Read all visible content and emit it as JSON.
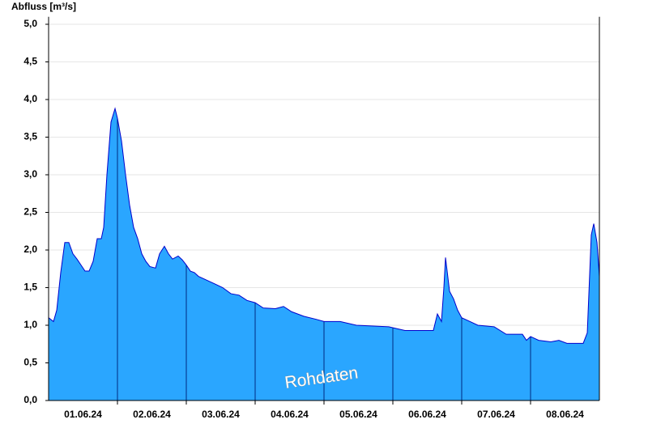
{
  "chart_data": {
    "type": "area",
    "y_label": "Abfluss [m³/s]",
    "watermark": "Rohdaten",
    "color": "#2aa6ff",
    "line_color": "#0000cc",
    "grid": true,
    "x": [
      0,
      0.071,
      0.118,
      0.176,
      0.235,
      0.294,
      0.353,
      0.412,
      0.471,
      0.529,
      0.588,
      0.647,
      0.706,
      0.765,
      0.8,
      0.847,
      0.906,
      0.965,
      1,
      1.059,
      1.118,
      1.176,
      1.235,
      1.294,
      1.353,
      1.412,
      1.471,
      1.553,
      1.612,
      1.682,
      1.741,
      1.8,
      1.882,
      1.941,
      2,
      2.059,
      2.118,
      2.176,
      2.294,
      2.412,
      2.529,
      2.647,
      2.765,
      2.882,
      3,
      3.118,
      3.294,
      3.412,
      3.529,
      3.706,
      3.882,
      4,
      4.235,
      4.471,
      4.941,
      5.176,
      5.588,
      5.647,
      5.706,
      5.741,
      5.765,
      5.824,
      5.882,
      5.941,
      6,
      6.118,
      6.235,
      6.471,
      6.647,
      6.882,
      6.941,
      7,
      7.118,
      7.294,
      7.412,
      7.529,
      7.765,
      7.824,
      7.882,
      7.918,
      7.965,
      8
    ],
    "values": [
      1.1,
      1.05,
      1.2,
      1.7,
      2.1,
      2.1,
      1.95,
      1.88,
      1.8,
      1.72,
      1.72,
      1.85,
      2.15,
      2.15,
      2.3,
      3.0,
      3.7,
      3.88,
      3.75,
      3.45,
      3.0,
      2.6,
      2.3,
      2.15,
      1.95,
      1.85,
      1.78,
      1.76,
      1.95,
      2.05,
      1.95,
      1.88,
      1.92,
      1.87,
      1.8,
      1.72,
      1.7,
      1.65,
      1.6,
      1.55,
      1.5,
      1.42,
      1.4,
      1.33,
      1.3,
      1.23,
      1.22,
      1.25,
      1.18,
      1.12,
      1.08,
      1.05,
      1.05,
      1.0,
      0.98,
      0.93,
      0.93,
      1.15,
      1.05,
      1.5,
      1.9,
      1.45,
      1.35,
      1.2,
      1.1,
      1.05,
      1.0,
      0.98,
      0.88,
      0.88,
      0.8,
      0.85,
      0.8,
      0.78,
      0.8,
      0.76,
      0.76,
      0.9,
      2.2,
      2.35,
      2.1,
      1.65
    ],
    "xlim": [
      0,
      8
    ],
    "xticks": [
      {
        "value": 0.5,
        "label": "01.06.24"
      },
      {
        "value": 1.5,
        "label": "02.06.24"
      },
      {
        "value": 2.5,
        "label": "03.06.24"
      },
      {
        "value": 3.5,
        "label": "04.06.24"
      },
      {
        "value": 4.5,
        "label": "05.06.24"
      },
      {
        "value": 5.5,
        "label": "06.06.24"
      },
      {
        "value": 6.5,
        "label": "07.06.24"
      },
      {
        "value": 7.5,
        "label": "08.06.24"
      }
    ],
    "ylim": [
      0,
      5.1
    ],
    "yticks": [
      {
        "value": 0,
        "label": "0,0"
      },
      {
        "value": 0.5,
        "label": "0,5"
      },
      {
        "value": 1,
        "label": "1,0"
      },
      {
        "value": 1.5,
        "label": "1,5"
      },
      {
        "value": 2,
        "label": "2,0"
      },
      {
        "value": 2.5,
        "label": "2,5"
      },
      {
        "value": 3,
        "label": "3,0"
      },
      {
        "value": 3.5,
        "label": "3,5"
      },
      {
        "value": 4,
        "label": "4,0"
      },
      {
        "value": 4.5,
        "label": "4,5"
      },
      {
        "value": 5,
        "label": "5,0"
      }
    ]
  }
}
